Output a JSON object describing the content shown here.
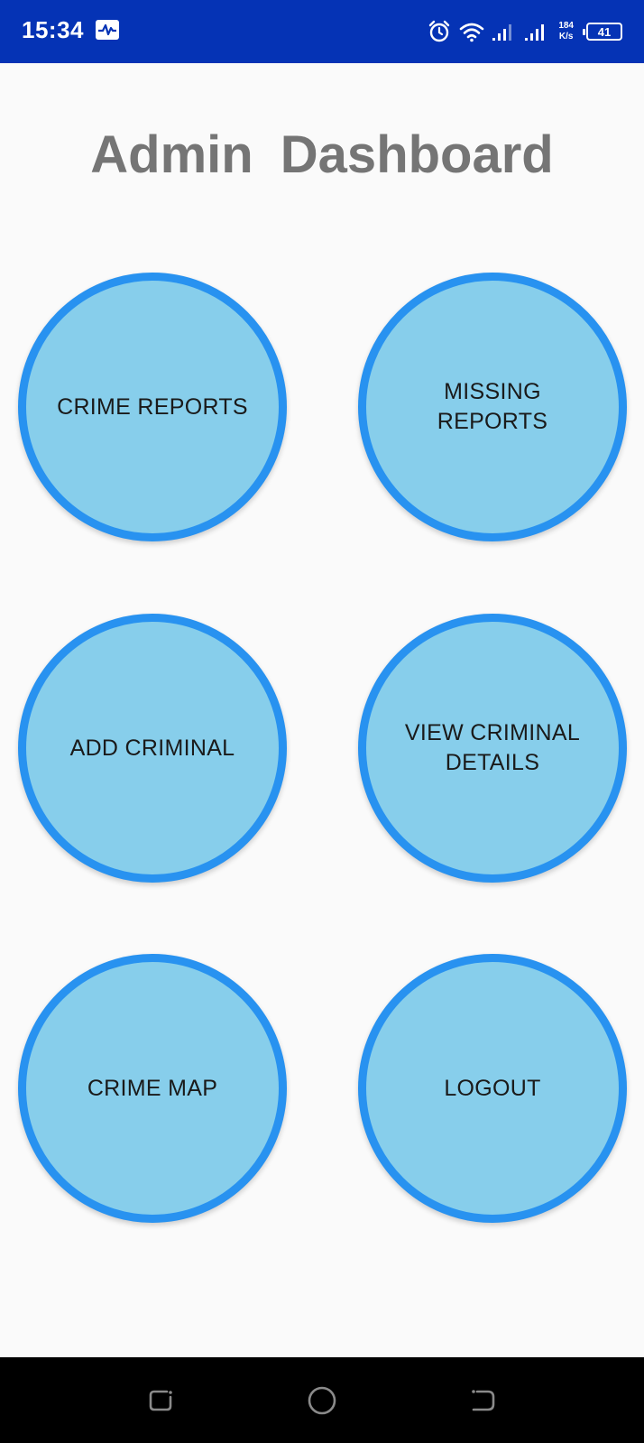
{
  "status_bar": {
    "time": "15:34",
    "net_speed_value": "184",
    "net_speed_unit": "K/s",
    "battery_level": "41",
    "icons": [
      "activity-icon",
      "alarm-icon",
      "wifi-icon",
      "signal-icon",
      "signal-icon",
      "battery-icon"
    ]
  },
  "header": {
    "title": "Admin  Dashboard"
  },
  "buttons": [
    {
      "label": "CRIME REPORTS"
    },
    {
      "label": "MISSING REPORTS"
    },
    {
      "label": "ADD CRIMINAL"
    },
    {
      "label": "VIEW CRIMINAL DETAILS"
    },
    {
      "label": "CRIME MAP"
    },
    {
      "label": "LOGOUT"
    }
  ],
  "colors": {
    "status_bar": "#0533b5",
    "circle_fill": "#87ceeb",
    "circle_border": "#2892f0",
    "title_text": "#757575"
  },
  "nav_bar": {
    "icons": [
      "recent-apps-icon",
      "home-icon",
      "back-icon"
    ]
  }
}
